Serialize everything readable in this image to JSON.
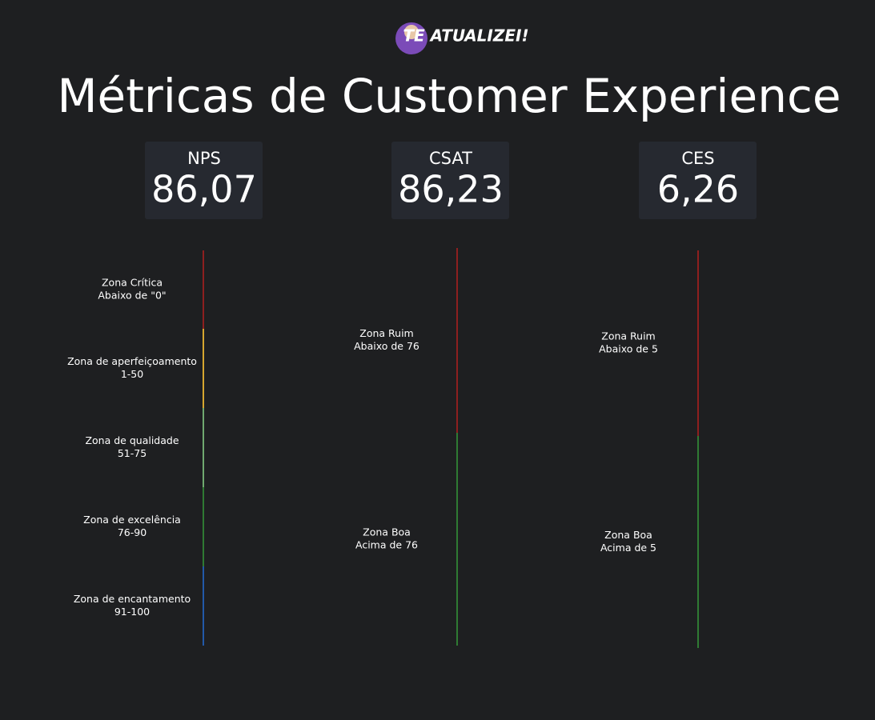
{
  "logo": {
    "text": "TE ATUALIZEI!"
  },
  "title": "Métricas de Customer Experience",
  "cards": [
    {
      "label": "NPS",
      "value": "86,07"
    },
    {
      "label": "CSAT",
      "value": "86,23"
    },
    {
      "label": "CES",
      "value": "6,26"
    }
  ],
  "scales": [
    {
      "zones": [
        {
          "lines": [
            "Zona Crítica",
            "Abaixo de \"0\""
          ],
          "color": "#8e1f1f"
        },
        {
          "lines": [
            "Zona de aperfeiçoamento",
            "1-50"
          ],
          "color": "#d6a62f"
        },
        {
          "lines": [
            "Zona de qualidade",
            "51-75"
          ],
          "color": "#6fa86f"
        },
        {
          "lines": [
            "Zona de excelência",
            "76-90"
          ],
          "color": "#2f7a33"
        },
        {
          "lines": [
            "Zona de encantamento",
            "91-100"
          ],
          "color": "#2259a8"
        }
      ]
    },
    {
      "zones": [
        {
          "lines": [
            "Zona Ruim",
            "Abaixo de 76"
          ],
          "color": "#8e1f1f"
        },
        {
          "lines": [
            "Zona Boa",
            "Acima de 76"
          ],
          "color": "#2f7a33"
        }
      ]
    },
    {
      "zones": [
        {
          "lines": [
            "Zona Ruim",
            "Abaixo de 5"
          ],
          "color": "#8e1f1f"
        },
        {
          "lines": [
            "Zona Boa",
            "Acima de 5"
          ],
          "color": "#2f7a33"
        }
      ]
    }
  ]
}
